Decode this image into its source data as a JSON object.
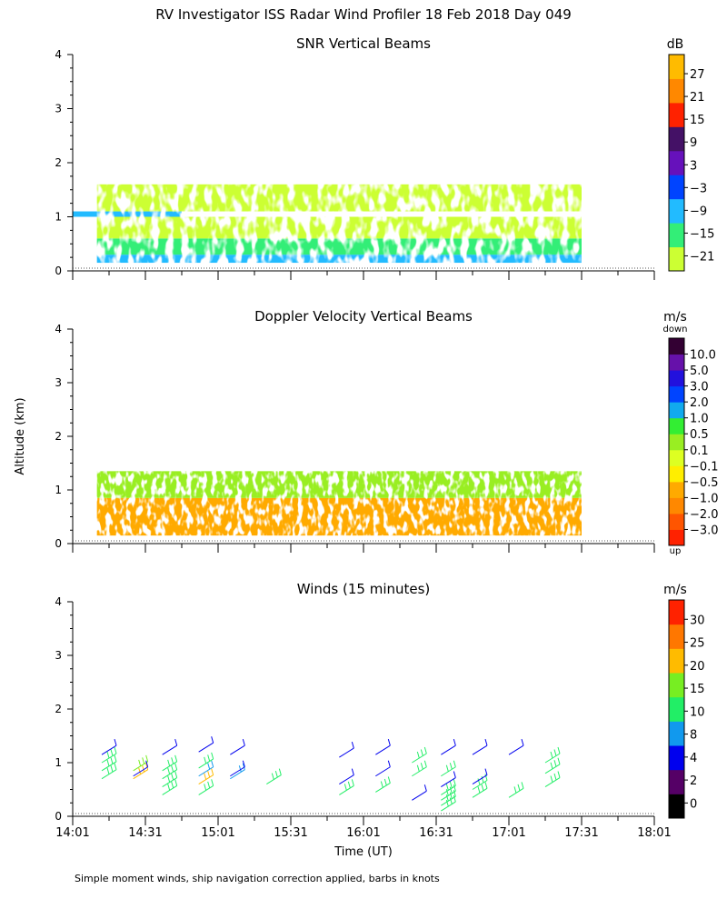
{
  "title": "RV Investigator ISS Radar Wind Profiler  18 Feb 2018 Day 049",
  "footnote": "Simple moment winds, ship navigation correction applied, barbs in knots",
  "ylabel": "Altitude (km)",
  "xlabel": "Time (UT)",
  "time_ticks": [
    "14:01",
    "14:31",
    "15:01",
    "15:31",
    "16:01",
    "16:31",
    "17:01",
    "17:31",
    "18:01"
  ],
  "alt_ticks": [
    "0",
    "1",
    "2",
    "3",
    "4"
  ],
  "chart_data": [
    {
      "type": "heatmap",
      "title": "SNR Vertical Beams",
      "ylim": [
        0,
        4
      ],
      "colorbar": {
        "unit": "dB",
        "ticks": [
          "27",
          "21",
          "15",
          "9",
          "3",
          "−3",
          "−9",
          "−15",
          "−21"
        ],
        "colors": [
          "#ccff33",
          "#33ee77",
          "#22bbff",
          "#0044ff",
          "#6611bb",
          "#441166",
          "#ff2200",
          "#ff8800",
          "#ffbb00"
        ]
      },
      "data_extent": {
        "time_start": "14:11",
        "time_end": "17:31",
        "alt_min_km": 0.15
      },
      "layers": [
        {
          "alt_from": 0.15,
          "alt_to": 0.3,
          "level_db": -6
        },
        {
          "alt_from": 0.3,
          "alt_to": 0.6,
          "level_db": -14
        },
        {
          "alt_from": 0.6,
          "alt_to": 1.0,
          "level_db": -19
        },
        {
          "alt_from": 1.0,
          "alt_to": 1.1,
          "level_db": -6,
          "time_start": "14:01",
          "time_end": "14:46"
        },
        {
          "alt_from": 1.1,
          "alt_to": 1.6,
          "level_db": -21
        }
      ]
    },
    {
      "type": "heatmap",
      "title": "Doppler Velocity Vertical Beams",
      "ylim": [
        0,
        4
      ],
      "colorbar": {
        "unit": "m/s",
        "top_label": "down",
        "bottom_label": "up",
        "ticks": [
          "10.0",
          "5.0",
          "3.0",
          "2.0",
          "1.0",
          "0.5",
          "0.1",
          "−0.1",
          "−0.5",
          "−1.0",
          "−2.0",
          "−3.0"
        ],
        "colors": [
          "#ff2200",
          "#ff5500",
          "#ff8800",
          "#ffaa00",
          "#ffee00",
          "#ddff22",
          "#99ee22",
          "#33ee33",
          "#11aaee",
          "#0044ff",
          "#2211dd",
          "#6611aa",
          "#330033"
        ]
      },
      "data_extent": {
        "time_start": "14:11",
        "time_end": "17:31",
        "alt_min_km": 0.15
      },
      "layers": [
        {
          "alt_from": 0.15,
          "alt_to": 0.85,
          "level_ms": -1.0
        },
        {
          "alt_from": 0.85,
          "alt_to": 1.35,
          "level_ms": 0.1
        }
      ]
    },
    {
      "type": "barbs",
      "title": "Winds (15 minutes)",
      "ylim": [
        0,
        4
      ],
      "colorbar": {
        "unit": "m/s",
        "ticks": [
          "30",
          "25",
          "20",
          "15",
          "10",
          "8",
          "4",
          "2",
          "0"
        ],
        "colors": [
          "#000000",
          "#550066",
          "#0000ee",
          "#1199ee",
          "#22ee66",
          "#77ee22",
          "#ffbb00",
          "#ff7700",
          "#ff2200"
        ]
      },
      "profiles": [
        {
          "time": "14:13",
          "barbs": [
            {
              "alt": 0.7,
              "speed": 13
            },
            {
              "alt": 0.85,
              "speed": 13
            },
            {
              "alt": 1.0,
              "speed": 14
            },
            {
              "alt": 1.15,
              "speed": 4
            }
          ]
        },
        {
          "time": "14:26",
          "barbs": [
            {
              "alt": 0.7,
              "speed": 22
            },
            {
              "alt": 0.85,
              "speed": 15
            },
            {
              "alt": 0.75,
              "speed": 4
            }
          ]
        },
        {
          "time": "14:38",
          "barbs": [
            {
              "alt": 0.4,
              "speed": 13
            },
            {
              "alt": 0.55,
              "speed": 13
            },
            {
              "alt": 0.7,
              "speed": 14
            },
            {
              "alt": 0.85,
              "speed": 14
            },
            {
              "alt": 1.15,
              "speed": 4
            }
          ]
        },
        {
          "time": "14:53",
          "barbs": [
            {
              "alt": 0.4,
              "speed": 13
            },
            {
              "alt": 0.6,
              "speed": 20
            },
            {
              "alt": 0.75,
              "speed": 8
            },
            {
              "alt": 0.9,
              "speed": 14
            },
            {
              "alt": 1.2,
              "speed": 4
            }
          ]
        },
        {
          "time": "15:06",
          "barbs": [
            {
              "alt": 0.7,
              "speed": 8
            },
            {
              "alt": 0.75,
              "speed": 4
            },
            {
              "alt": 1.15,
              "speed": 4
            }
          ]
        },
        {
          "time": "15:21",
          "barbs": [
            {
              "alt": 0.6,
              "speed": 13
            }
          ]
        },
        {
          "time": "15:51",
          "barbs": [
            {
              "alt": 0.4,
              "speed": 13
            },
            {
              "alt": 0.6,
              "speed": 4
            },
            {
              "alt": 1.1,
              "speed": 4
            }
          ]
        },
        {
          "time": "16:06",
          "barbs": [
            {
              "alt": 0.45,
              "speed": 13
            },
            {
              "alt": 0.75,
              "speed": 4
            },
            {
              "alt": 1.15,
              "speed": 4
            }
          ]
        },
        {
          "time": "16:21",
          "barbs": [
            {
              "alt": 0.3,
              "speed": 4
            },
            {
              "alt": 0.75,
              "speed": 13
            },
            {
              "alt": 1.0,
              "speed": 13
            }
          ]
        },
        {
          "time": "16:33",
          "barbs": [
            {
              "alt": 0.1,
              "speed": 13
            },
            {
              "alt": 0.2,
              "speed": 13
            },
            {
              "alt": 0.3,
              "speed": 13
            },
            {
              "alt": 0.4,
              "speed": 13
            },
            {
              "alt": 0.55,
              "speed": 4
            },
            {
              "alt": 0.75,
              "speed": 13
            },
            {
              "alt": 1.15,
              "speed": 4
            }
          ]
        },
        {
          "time": "16:46",
          "barbs": [
            {
              "alt": 0.35,
              "speed": 13
            },
            {
              "alt": 0.5,
              "speed": 13
            },
            {
              "alt": 0.6,
              "speed": 4
            },
            {
              "alt": 1.15,
              "speed": 4
            }
          ]
        },
        {
          "time": "17:01",
          "barbs": [
            {
              "alt": 0.35,
              "speed": 13
            },
            {
              "alt": 1.15,
              "speed": 4
            }
          ]
        },
        {
          "time": "17:16",
          "barbs": [
            {
              "alt": 0.55,
              "speed": 13
            },
            {
              "alt": 0.8,
              "speed": 13
            },
            {
              "alt": 1.0,
              "speed": 13
            }
          ]
        }
      ]
    }
  ]
}
